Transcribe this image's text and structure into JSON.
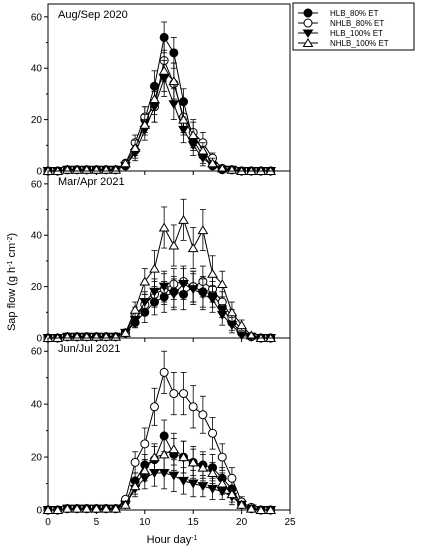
{
  "figure": {
    "ylabel_main": "Sap flow (g h",
    "ylabel_sup1": "-1",
    "ylabel_mid": " cm",
    "ylabel_sup2": "-2",
    "ylabel_end": ")",
    "xlabel_main": "Hour day",
    "xlabel_sup": "-1"
  },
  "legend": {
    "items": [
      {
        "label": "HLB_80% ET",
        "marker": "circle-filled"
      },
      {
        "label": "NHLB_80% ET",
        "marker": "circle-open"
      },
      {
        "label": "HLB_100% ET",
        "marker": "triangle-down-filled"
      },
      {
        "label": "NHLB_100% ET",
        "marker": "triangle-up-open"
      }
    ]
  },
  "chart_data": [
    {
      "type": "line",
      "title": "Aug/Sep 2020",
      "xlim": [
        0,
        25
      ],
      "ylim": [
        0,
        65
      ],
      "xticks": [],
      "yticks": [
        "0",
        "20",
        "40",
        "60"
      ],
      "x": [
        0,
        1,
        2,
        3,
        4,
        5,
        6,
        7,
        8,
        9,
        10,
        11,
        12,
        13,
        14,
        15,
        16,
        17,
        18,
        19,
        20,
        21,
        22,
        23
      ],
      "series": [
        {
          "name": "HLB_80% ET",
          "marker": "circle-filled",
          "values": [
            0,
            0,
            0.5,
            0.5,
            0.5,
            0.5,
            0.5,
            0.5,
            2,
            8,
            20,
            33,
            52,
            46,
            27,
            12,
            6,
            2,
            0.5,
            0.5,
            0,
            0,
            0,
            0
          ],
          "err": [
            0.5,
            0.5,
            0.5,
            0.5,
            0.5,
            0.5,
            0.5,
            0.5,
            1,
            3,
            5,
            6,
            6,
            6,
            5,
            4,
            3,
            1,
            0.5,
            0.5,
            0.5,
            0.5,
            0.5,
            0.5
          ]
        },
        {
          "name": "NHLB_80% ET",
          "marker": "circle-open",
          "values": [
            0,
            0,
            0.5,
            0.5,
            0.5,
            0.5,
            0.5,
            0.5,
            3,
            11,
            21,
            25,
            43,
            34,
            21,
            15,
            11,
            5,
            1,
            0.5,
            0,
            0,
            0,
            0
          ],
          "err": [
            0.5,
            0.5,
            0.5,
            0.5,
            0.5,
            0.5,
            0.5,
            0.5,
            1,
            3,
            4,
            6,
            8,
            8,
            6,
            5,
            4,
            2,
            1,
            0.5,
            0.5,
            0.5,
            0.5,
            0.5
          ]
        },
        {
          "name": "HLB_100% ET",
          "marker": "triangle-down-filled",
          "values": [
            0,
            0,
            0.5,
            0.5,
            0.5,
            0.5,
            0.5,
            0.5,
            2,
            7,
            16,
            25,
            36,
            26,
            16,
            10,
            5,
            2,
            0.5,
            0.5,
            0,
            0,
            0,
            0
          ],
          "err": [
            0.5,
            0.5,
            0.5,
            0.5,
            0.5,
            0.5,
            0.5,
            0.5,
            1,
            3,
            4,
            6,
            7,
            6,
            5,
            4,
            3,
            1,
            0.5,
            0.5,
            0.5,
            0.5,
            0.5,
            0.5
          ]
        },
        {
          "name": "NHLB_100% ET",
          "marker": "triangle-up-open",
          "values": [
            0,
            0,
            0.5,
            0.5,
            0.5,
            0.5,
            0.5,
            0.5,
            3,
            9,
            18,
            28,
            39,
            35,
            20,
            14,
            8,
            3,
            1,
            0.5,
            0,
            0,
            0,
            0
          ],
          "err": [
            0.5,
            0.5,
            0.5,
            0.5,
            0.5,
            0.5,
            0.5,
            0.5,
            1,
            3,
            4,
            6,
            8,
            7,
            6,
            5,
            3,
            2,
            1,
            0.5,
            0.5,
            0.5,
            0.5,
            0.5
          ]
        }
      ]
    },
    {
      "type": "line",
      "title": "Mar/Apr 2021",
      "xlim": [
        0,
        25
      ],
      "ylim": [
        0,
        65
      ],
      "xticks": [],
      "yticks": [
        "0",
        "20",
        "40",
        "60"
      ],
      "x": [
        0,
        1,
        2,
        3,
        4,
        5,
        6,
        7,
        8,
        9,
        10,
        11,
        12,
        13,
        14,
        15,
        16,
        17,
        18,
        19,
        20,
        21,
        22,
        23
      ],
      "series": [
        {
          "name": "HLB_80% ET",
          "marker": "circle-filled",
          "values": [
            0,
            0,
            0.5,
            0.5,
            0.5,
            0.5,
            0.5,
            0.5,
            2,
            6,
            10,
            14,
            16,
            18,
            17,
            20,
            18,
            17,
            12,
            6,
            2,
            0.5,
            0,
            0
          ],
          "err": [
            0.5,
            0.5,
            0.5,
            0.5,
            0.5,
            0.5,
            0.5,
            0.5,
            1,
            2,
            4,
            5,
            6,
            6,
            6,
            6,
            6,
            5,
            4,
            3,
            1,
            0.5,
            0.5,
            0.5
          ]
        },
        {
          "name": "NHLB_80% ET",
          "marker": "circle-open",
          "values": [
            0,
            0,
            0.5,
            0.5,
            0.5,
            0.5,
            0.5,
            0.5,
            2,
            9,
            13,
            17,
            19,
            21,
            22,
            20,
            22,
            19,
            14,
            8,
            3,
            0.5,
            0,
            0
          ],
          "err": [
            0.5,
            0.5,
            0.5,
            0.5,
            0.5,
            0.5,
            0.5,
            0.5,
            1,
            3,
            4,
            5,
            6,
            6,
            6,
            6,
            6,
            5,
            4,
            3,
            1,
            0.5,
            0.5,
            0.5
          ]
        },
        {
          "name": "HLB_100% ET",
          "marker": "triangle-down-filled",
          "values": [
            0,
            0,
            0.5,
            0.5,
            0.5,
            0.5,
            0.5,
            0.5,
            2,
            7,
            14,
            18,
            20,
            17,
            21,
            19,
            17,
            15,
            9,
            5,
            1,
            0.5,
            0,
            0
          ],
          "err": [
            0.5,
            0.5,
            0.5,
            0.5,
            0.5,
            0.5,
            0.5,
            0.5,
            1,
            3,
            4,
            5,
            6,
            6,
            6,
            6,
            6,
            5,
            4,
            3,
            1,
            0.5,
            0.5,
            0.5
          ]
        },
        {
          "name": "NHLB_100% ET",
          "marker": "triangle-up-open",
          "values": [
            0,
            0,
            0.5,
            0.5,
            0.5,
            0.5,
            0.5,
            0.5,
            2,
            11,
            22,
            27,
            43,
            36,
            46,
            35,
            42,
            25,
            21,
            10,
            5,
            1,
            0,
            0
          ],
          "err": [
            0.5,
            0.5,
            0.5,
            0.5,
            0.5,
            0.5,
            0.5,
            0.5,
            1,
            3,
            5,
            7,
            8,
            8,
            8,
            8,
            8,
            7,
            5,
            4,
            2,
            1,
            0.5,
            0.5
          ]
        }
      ]
    },
    {
      "type": "line",
      "title": "Jun/Jul 2021",
      "xlim": [
        0,
        25
      ],
      "ylim": [
        0,
        65
      ],
      "xticks": [
        "0",
        "5",
        "10",
        "15",
        "20",
        "25"
      ],
      "yticks": [
        "0",
        "20",
        "40",
        "60"
      ],
      "x": [
        0,
        1,
        2,
        3,
        4,
        5,
        6,
        7,
        8,
        9,
        10,
        11,
        12,
        13,
        14,
        15,
        16,
        17,
        18,
        19,
        20,
        21,
        22,
        23
      ],
      "series": [
        {
          "name": "HLB_80% ET",
          "marker": "circle-filled",
          "values": [
            0,
            0,
            0.5,
            0.5,
            0.5,
            0.5,
            0.5,
            0.5,
            3,
            11,
            17,
            19,
            28,
            21,
            20,
            18,
            17,
            16,
            12,
            8,
            2,
            0.5,
            0,
            0
          ],
          "err": [
            0.5,
            0.5,
            0.5,
            0.5,
            0.5,
            0.5,
            0.5,
            0.5,
            1,
            3,
            4,
            5,
            6,
            6,
            6,
            6,
            5,
            5,
            4,
            3,
            1,
            0.5,
            0.5,
            0.5
          ]
        },
        {
          "name": "NHLB_80% ET",
          "marker": "circle-open",
          "values": [
            0,
            0,
            0.5,
            0.5,
            0.5,
            0.5,
            0.5,
            0.5,
            4,
            18,
            25,
            39,
            52,
            44,
            44,
            39,
            36,
            29,
            20,
            12,
            3,
            1,
            0,
            0
          ],
          "err": [
            0.5,
            0.5,
            0.5,
            0.5,
            0.5,
            0.5,
            0.5,
            0.5,
            1,
            4,
            6,
            7,
            8,
            8,
            8,
            8,
            7,
            6,
            5,
            4,
            2,
            1,
            0.5,
            0.5
          ]
        },
        {
          "name": "HLB_100% ET",
          "marker": "triangle-down-filled",
          "values": [
            0,
            0,
            0.5,
            0.5,
            0.5,
            0.5,
            0.5,
            0.5,
            2,
            8,
            12,
            14,
            14,
            13,
            11,
            10,
            9,
            8,
            7,
            5,
            2,
            0.5,
            0,
            0
          ],
          "err": [
            0.5,
            0.5,
            0.5,
            0.5,
            0.5,
            0.5,
            0.5,
            0.5,
            1,
            3,
            4,
            5,
            6,
            6,
            5,
            5,
            4,
            4,
            3,
            3,
            1,
            0.5,
            0.5,
            0.5
          ]
        },
        {
          "name": "NHLB_100% ET",
          "marker": "triangle-up-open",
          "values": [
            0,
            0,
            0.5,
            0.5,
            0.5,
            0.5,
            0.5,
            0.5,
            2,
            9,
            15,
            20,
            21,
            23,
            20,
            18,
            16,
            14,
            10,
            6,
            2,
            0.5,
            0,
            0
          ],
          "err": [
            0.5,
            0.5,
            0.5,
            0.5,
            0.5,
            0.5,
            0.5,
            0.5,
            1,
            3,
            4,
            5,
            6,
            6,
            6,
            5,
            5,
            4,
            4,
            3,
            1,
            0.5,
            0.5,
            0.5
          ]
        }
      ]
    }
  ]
}
